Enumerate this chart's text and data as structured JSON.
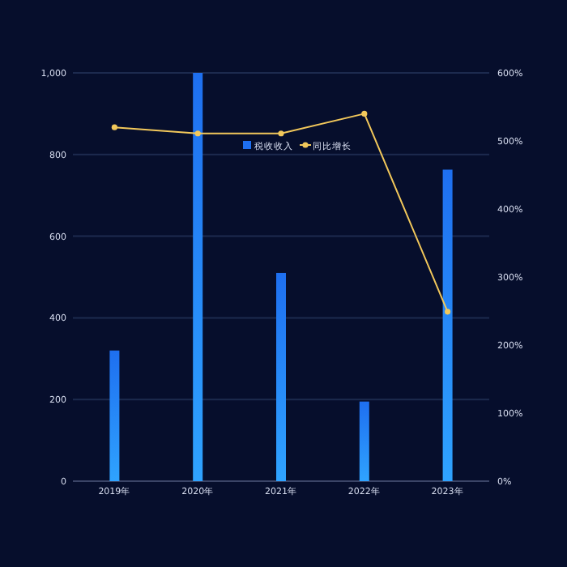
{
  "chart_data": {
    "type": "bar",
    "categories": [
      "2019年",
      "2020年",
      "2021年",
      "2022年",
      "2023年"
    ],
    "series": [
      {
        "name": "税收收入",
        "color": "#1e6ff0",
        "values": [
          320,
          1000,
          510,
          195,
          763
        ]
      },
      {
        "name": "同比增长",
        "type": "line",
        "axis": "y2",
        "color": "#f2c85b",
        "values": [
          520,
          511,
          511,
          540,
          249
        ]
      }
    ],
    "ylim": [
      0,
      1000
    ],
    "yticks": [
      0,
      200,
      400,
      600,
      800,
      {
        "value": 1000,
        "label": "1,000"
      }
    ],
    "y2lim": [
      0,
      600
    ],
    "y2ticks": [
      {
        "value": 0,
        "label": "0%"
      },
      {
        "value": 100,
        "label": "100%"
      },
      {
        "value": 200,
        "label": "200%"
      },
      {
        "value": 300,
        "label": "300%"
      },
      {
        "value": 400,
        "label": "400%"
      },
      {
        "value": 500,
        "label": "500%"
      },
      {
        "value": 600,
        "label": "600%"
      }
    ],
    "grid": "y",
    "legend": "top",
    "marker": "circle"
  }
}
